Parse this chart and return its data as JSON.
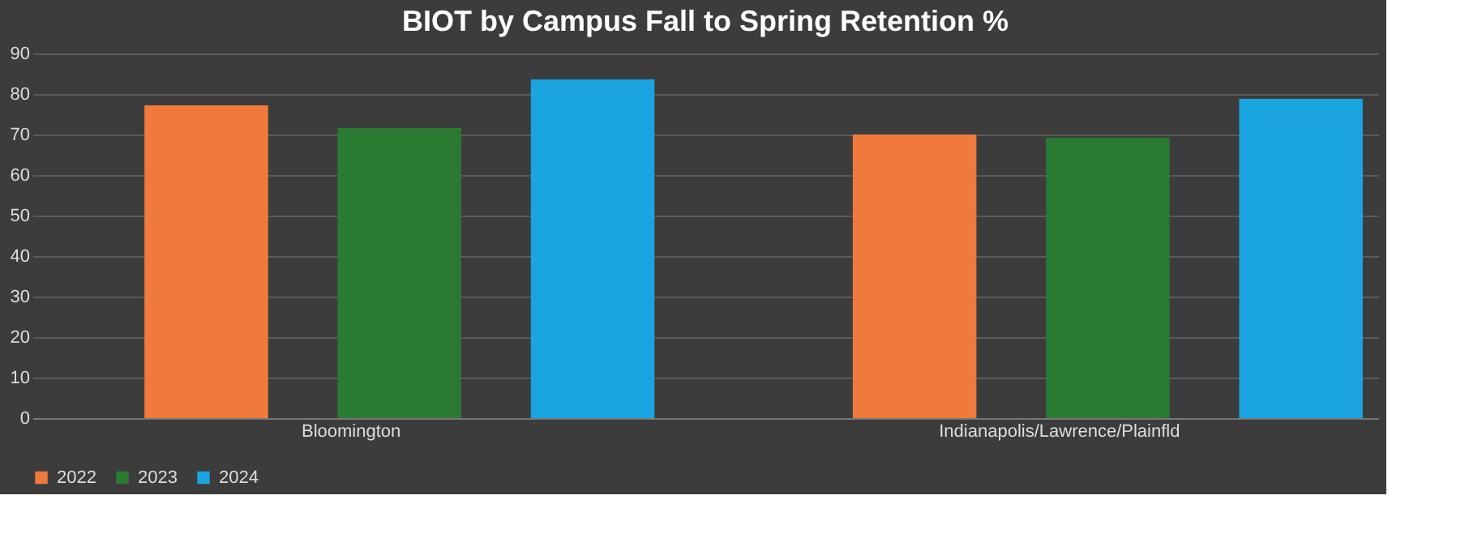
{
  "chart_data": {
    "type": "bar",
    "title": "BIOT by Campus Fall to Spring Retention %",
    "categories": [
      "Bloomington",
      "Indianapolis/Lawrence/Plainfld"
    ],
    "series": [
      {
        "name": "2022",
        "color": "#f07a3c",
        "values": [
          77.2,
          70.0
        ]
      },
      {
        "name": "2023",
        "color": "#2a7a32",
        "values": [
          71.6,
          69.2
        ]
      },
      {
        "name": "2024",
        "color": "#1aa5e0",
        "values": [
          83.6,
          78.8
        ]
      }
    ],
    "ylim": [
      0,
      90
    ],
    "yticks": [
      0,
      10,
      20,
      30,
      40,
      50,
      60,
      70,
      80,
      90
    ],
    "grid": "y",
    "legend": "bottom"
  }
}
